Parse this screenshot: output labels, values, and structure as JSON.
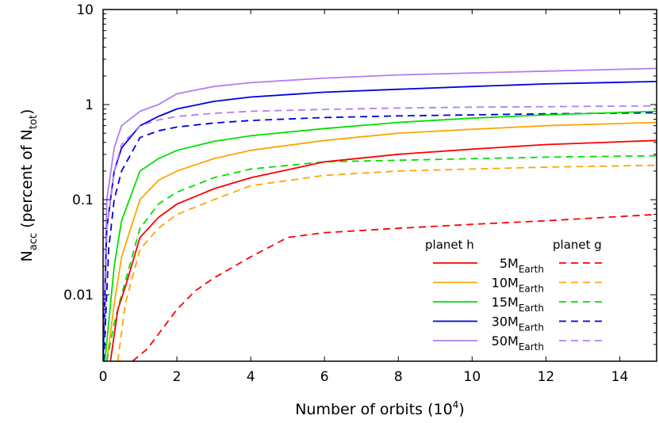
{
  "chart_data": {
    "type": "line",
    "title": "",
    "xlabel": "Number of orbits (10",
    "xlabel_sup": "4",
    "xlabel_end": ")",
    "ylabel_main": "N",
    "ylabel_sub": "acc",
    "ylabel_mid": " (percent of N",
    "ylabel_sub2": "tot",
    "ylabel_end": ")",
    "xlim": [
      0,
      15
    ],
    "ylim": [
      0.002,
      10
    ],
    "yscale": "log",
    "xticks": [
      "0",
      "2",
      "4",
      "6",
      "8",
      "10",
      "12",
      "14"
    ],
    "yticks": [
      "0.01",
      "0.1",
      "1",
      "10"
    ],
    "grid": false,
    "legend": {
      "placement": "bottom-right",
      "col_h": "planet h",
      "col_g": "planet g",
      "rows": [
        {
          "mass": "5M",
          "sub": "Earth",
          "color": "#ff0000"
        },
        {
          "mass": "10M",
          "sub": "Earth",
          "color": "#ffa500"
        },
        {
          "mass": "15M",
          "sub": "Earth",
          "color": "#00e000"
        },
        {
          "mass": "30M",
          "sub": "Earth",
          "color": "#0000e0"
        },
        {
          "mass": "50M",
          "sub": "Earth",
          "color": "#b07ff0"
        }
      ]
    },
    "series": [
      {
        "planet": "h",
        "mass_index": 4,
        "style": "solid",
        "color": "#b07ff0",
        "x": [
          0,
          0.1,
          0.3,
          0.5,
          1,
          1.5,
          2,
          3,
          4,
          6,
          8,
          10,
          12,
          15
        ],
        "y": [
          0.002,
          0.1,
          0.35,
          0.6,
          0.85,
          1.0,
          1.3,
          1.55,
          1.7,
          1.9,
          2.05,
          2.15,
          2.25,
          2.4
        ]
      },
      {
        "planet": "h",
        "mass_index": 3,
        "style": "solid",
        "color": "#0000e0",
        "x": [
          0,
          0.1,
          0.3,
          0.5,
          1,
          1.5,
          2,
          3,
          4,
          6,
          8,
          10,
          12,
          15
        ],
        "y": [
          0.002,
          0.05,
          0.2,
          0.35,
          0.6,
          0.75,
          0.9,
          1.08,
          1.2,
          1.35,
          1.45,
          1.55,
          1.65,
          1.75
        ]
      },
      {
        "planet": "g",
        "mass_index": 4,
        "style": "dashed",
        "color": "#b07ff0",
        "x": [
          0,
          0.1,
          0.3,
          0.5,
          1,
          1.5,
          2,
          3,
          4,
          6,
          8,
          10,
          12,
          15
        ],
        "y": [
          0.002,
          0.05,
          0.2,
          0.38,
          0.6,
          0.69,
          0.75,
          0.81,
          0.85,
          0.89,
          0.92,
          0.94,
          0.95,
          0.97
        ]
      },
      {
        "planet": "g",
        "mass_index": 3,
        "style": "dashed",
        "color": "#0000e0",
        "x": [
          0.02,
          0.15,
          0.3,
          0.5,
          1,
          1.5,
          2,
          3,
          4,
          6,
          8,
          10,
          12,
          15
        ],
        "y": [
          0.002,
          0.03,
          0.1,
          0.2,
          0.45,
          0.53,
          0.58,
          0.64,
          0.68,
          0.73,
          0.76,
          0.78,
          0.8,
          0.82
        ]
      },
      {
        "planet": "h",
        "mass_index": 2,
        "style": "solid",
        "color": "#00e000",
        "x": [
          0.05,
          0.3,
          0.5,
          1,
          1.5,
          2,
          3,
          4,
          6,
          8,
          10,
          12,
          15
        ],
        "y": [
          0.002,
          0.02,
          0.06,
          0.2,
          0.27,
          0.33,
          0.41,
          0.47,
          0.56,
          0.65,
          0.72,
          0.78,
          0.85
        ]
      },
      {
        "planet": "h",
        "mass_index": 1,
        "style": "solid",
        "color": "#ffa500",
        "x": [
          0.1,
          0.3,
          0.5,
          1,
          1.5,
          2,
          3,
          4,
          6,
          8,
          10,
          12,
          15
        ],
        "y": [
          0.002,
          0.008,
          0.025,
          0.1,
          0.16,
          0.2,
          0.27,
          0.33,
          0.42,
          0.5,
          0.55,
          0.6,
          0.65
        ]
      },
      {
        "planet": "g",
        "mass_index": 2,
        "style": "dashed",
        "color": "#00e000",
        "x": [
          0.1,
          0.3,
          0.5,
          1,
          1.5,
          2,
          3,
          4,
          6,
          8,
          10,
          12,
          15
        ],
        "y": [
          0.002,
          0.005,
          0.01,
          0.05,
          0.09,
          0.12,
          0.17,
          0.21,
          0.25,
          0.26,
          0.27,
          0.28,
          0.29
        ]
      },
      {
        "planet": "h",
        "mass_index": 0,
        "style": "solid",
        "color": "#ff0000",
        "x": [
          0.2,
          0.4,
          0.6,
          1,
          1.5,
          2,
          3,
          4,
          6,
          8,
          10,
          12,
          15
        ],
        "y": [
          0.002,
          0.007,
          0.012,
          0.04,
          0.065,
          0.09,
          0.13,
          0.17,
          0.25,
          0.3,
          0.34,
          0.38,
          0.42
        ]
      },
      {
        "planet": "g",
        "mass_index": 1,
        "style": "dashed",
        "color": "#ffa500",
        "x": [
          0.4,
          0.6,
          1,
          1.5,
          2,
          3,
          4,
          6,
          8,
          10,
          12,
          15
        ],
        "y": [
          0.002,
          0.008,
          0.03,
          0.05,
          0.07,
          0.1,
          0.14,
          0.18,
          0.2,
          0.21,
          0.22,
          0.23
        ]
      },
      {
        "planet": "g",
        "mass_index": 0,
        "style": "dashed",
        "color": "#ff0000",
        "x": [
          0.8,
          1.2,
          2,
          2.5,
          3,
          4,
          5,
          6,
          8,
          10,
          12,
          15
        ],
        "y": [
          0.002,
          0.0027,
          0.007,
          0.011,
          0.015,
          0.025,
          0.04,
          0.045,
          0.05,
          0.055,
          0.06,
          0.07
        ]
      }
    ]
  }
}
